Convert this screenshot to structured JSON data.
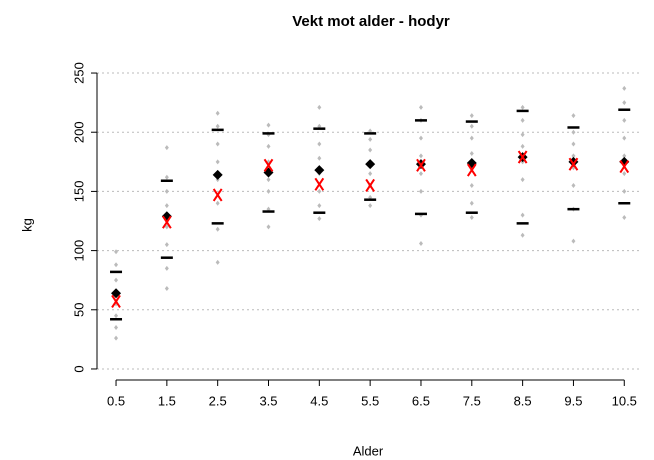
{
  "chart_data": {
    "type": "scatter",
    "title": "Vekt mot alder - hodyr",
    "xlabel": "Alder",
    "ylabel": "kg",
    "xlim": [
      0.1,
      10.9
    ],
    "ylim": [
      -10,
      260
    ],
    "xticks": [
      0.5,
      1.5,
      2.5,
      3.5,
      4.5,
      5.5,
      6.5,
      7.5,
      8.5,
      9.5,
      10.5
    ],
    "yticks": [
      0,
      50,
      100,
      150,
      200,
      250
    ],
    "grid": true,
    "x": [
      0.5,
      1.5,
      2.5,
      3.5,
      4.5,
      5.5,
      6.5,
      7.5,
      8.5,
      9.5,
      10.5
    ],
    "series": [
      {
        "marker": "dot",
        "color": "#bbbbbb",
        "x": [
          0.5,
          0.5,
          0.5,
          0.5,
          0.5,
          0.5,
          0.5,
          0.5,
          1.5,
          1.5,
          1.5,
          1.5,
          1.5,
          1.5,
          1.5,
          1.5,
          2.5,
          2.5,
          2.5,
          2.5,
          2.5,
          2.5,
          2.5,
          2.5,
          3.5,
          3.5,
          3.5,
          3.5,
          3.5,
          3.5,
          3.5,
          3.5,
          4.5,
          4.5,
          4.5,
          4.5,
          4.5,
          4.5,
          4.5,
          4.5,
          5.5,
          5.5,
          5.5,
          5.5,
          5.5,
          5.5,
          5.5,
          5.5,
          6.5,
          6.5,
          6.5,
          6.5,
          6.5,
          6.5,
          6.5,
          6.5,
          7.5,
          7.5,
          7.5,
          7.5,
          7.5,
          7.5,
          7.5,
          7.5,
          8.5,
          8.5,
          8.5,
          8.5,
          8.5,
          8.5,
          8.5,
          8.5,
          9.5,
          9.5,
          9.5,
          9.5,
          9.5,
          9.5,
          9.5,
          9.5,
          10.5,
          10.5,
          10.5,
          10.5,
          10.5,
          10.5,
          10.5,
          10.5
        ],
        "values": [
          99,
          88,
          75,
          65,
          55,
          45,
          35,
          26,
          187,
          162,
          150,
          138,
          120,
          105,
          85,
          68,
          216,
          205,
          190,
          175,
          160,
          140,
          118,
          90,
          206,
          198,
          188,
          175,
          160,
          150,
          135,
          120,
          221,
          205,
          190,
          178,
          165,
          150,
          138,
          127,
          201,
          194,
          185,
          175,
          165,
          155,
          145,
          138,
          221,
          210,
          195,
          180,
          165,
          150,
          130,
          106,
          214,
          205,
          195,
          182,
          170,
          155,
          140,
          128,
          221,
          210,
          198,
          188,
          175,
          160,
          130,
          113,
          214,
          200,
          190,
          180,
          170,
          155,
          135,
          108,
          237,
          225,
          210,
          195,
          180,
          165,
          150,
          128
        ]
      },
      {
        "marker": "dash",
        "color": "#000000",
        "values": [
          82,
          159,
          202,
          199,
          203,
          199,
          210,
          209,
          218,
          204,
          219
        ]
      },
      {
        "marker": "dash",
        "color": "#000000",
        "values": [
          42,
          94,
          123,
          133,
          132,
          143,
          131,
          132,
          123,
          135,
          140
        ]
      },
      {
        "marker": "diamond",
        "color": "#000000",
        "values": [
          64,
          129,
          164,
          166,
          168,
          173,
          173,
          174,
          179,
          175,
          175
        ]
      },
      {
        "marker": "cross",
        "color": "#ff0000",
        "values": [
          57,
          124,
          147,
          172,
          156,
          155,
          172,
          168,
          179,
          173,
          171
        ]
      }
    ]
  }
}
